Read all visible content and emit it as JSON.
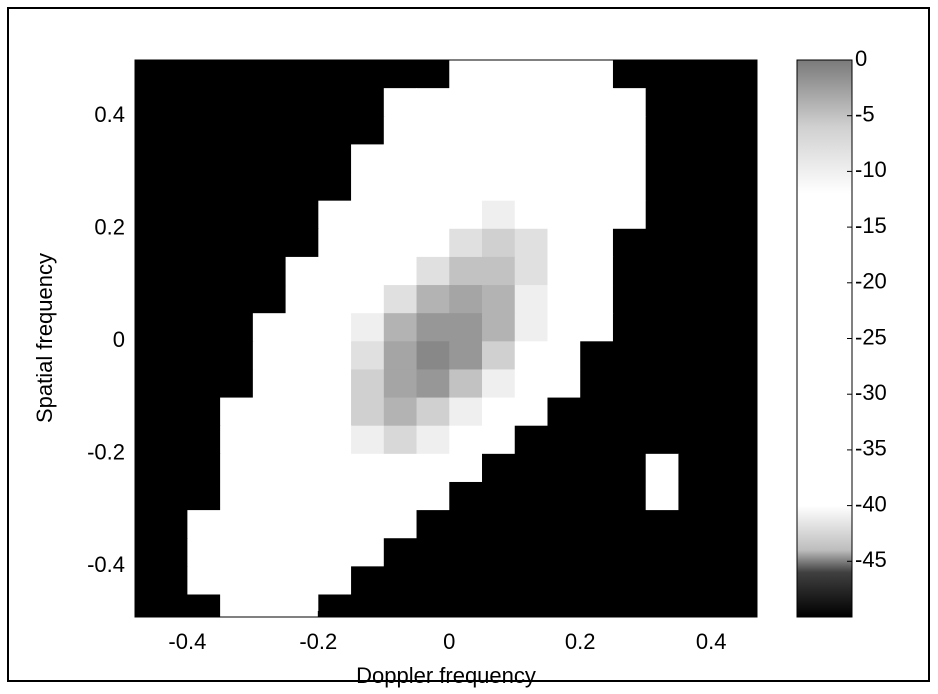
{
  "chart_data": {
    "type": "heatmap",
    "xlabel": "Doppler frequency",
    "ylabel": "Spatial frequency",
    "xlim": [
      -0.48,
      0.47
    ],
    "ylim": [
      -0.49,
      0.5
    ],
    "xticks": [
      -0.4,
      -0.2,
      0,
      0.2,
      0.4
    ],
    "yticks": [
      -0.4,
      -0.2,
      0,
      0.2,
      0.4
    ],
    "x": [
      -0.475,
      -0.425,
      -0.375,
      -0.325,
      -0.275,
      -0.225,
      -0.175,
      -0.125,
      -0.075,
      -0.025,
      0.025,
      0.075,
      0.125,
      0.175,
      0.225,
      0.275,
      0.325,
      0.375,
      0.425,
      0.475
    ],
    "y": [
      0.475,
      0.425,
      0.375,
      0.325,
      0.275,
      0.225,
      0.175,
      0.125,
      0.075,
      0.025,
      -0.025,
      -0.075,
      -0.125,
      -0.175,
      -0.225,
      -0.275,
      -0.325,
      -0.375,
      -0.425,
      -0.475
    ],
    "z": [
      [
        -50,
        -50,
        -50,
        -50,
        -50,
        -50,
        -50,
        -50,
        -50,
        -50,
        -25,
        -25,
        -25,
        -25,
        -25,
        -50,
        -50,
        -50,
        -50,
        -50
      ],
      [
        -50,
        -50,
        -50,
        -50,
        -50,
        -50,
        -50,
        -50,
        -40,
        -25,
        -25,
        -25,
        -25,
        -25,
        -25,
        -25,
        -50,
        -50,
        -50,
        -50
      ],
      [
        -50,
        -50,
        -50,
        -50,
        -50,
        -50,
        -50,
        -50,
        -25,
        -25,
        -25,
        -25,
        -25,
        -25,
        -25,
        -25,
        -50,
        -50,
        -50,
        -50
      ],
      [
        -50,
        -50,
        -50,
        -50,
        -50,
        -50,
        -50,
        -25,
        -25,
        -25,
        -25,
        -25,
        -25,
        -25,
        -25,
        -25,
        -50,
        -50,
        -50,
        -50
      ],
      [
        -50,
        -50,
        -50,
        -50,
        -50,
        -50,
        -50,
        -25,
        -25,
        -25,
        -25,
        -25,
        -25,
        -25,
        -25,
        -25,
        -50,
        -50,
        -50,
        -50
      ],
      [
        -50,
        -50,
        -50,
        -50,
        -50,
        -50,
        -25,
        -25,
        -25,
        -25,
        -25,
        -10,
        -25,
        -25,
        -25,
        -40,
        -50,
        -50,
        -50,
        -50
      ],
      [
        -50,
        -50,
        -50,
        -50,
        -50,
        -50,
        -25,
        -25,
        -25,
        -25,
        -8,
        -6,
        -8,
        -25,
        -25,
        -50,
        -50,
        -50,
        -50,
        -50
      ],
      [
        -50,
        -50,
        -50,
        -50,
        -50,
        -25,
        -25,
        -25,
        -25,
        -8,
        -5,
        -5,
        -8,
        -25,
        -25,
        -50,
        -50,
        -50,
        -50,
        -50
      ],
      [
        -50,
        -50,
        -50,
        -50,
        -50,
        -25,
        -25,
        -25,
        -8,
        -4,
        -3,
        -4,
        -10,
        -25,
        -25,
        -50,
        -50,
        -50,
        -50,
        -50
      ],
      [
        -50,
        -50,
        -50,
        -50,
        -40,
        -25,
        -25,
        -10,
        -4,
        -2,
        -2,
        -4,
        -10,
        -25,
        -40,
        -50,
        -50,
        -50,
        -50,
        -50
      ],
      [
        -50,
        -50,
        -50,
        -50,
        -25,
        -25,
        -25,
        -8,
        -3,
        -1,
        -2,
        -6,
        -25,
        -25,
        -50,
        -50,
        -50,
        -50,
        -50,
        -50
      ],
      [
        -50,
        -50,
        -50,
        -50,
        -25,
        -25,
        -25,
        -6,
        -3,
        -2,
        -5,
        -10,
        -25,
        -40,
        -50,
        -50,
        -50,
        -50,
        -50,
        -50
      ],
      [
        -50,
        -50,
        -50,
        -25,
        -25,
        -25,
        -25,
        -6,
        -4,
        -6,
        -10,
        -25,
        -25,
        -50,
        -50,
        -50,
        -50,
        -50,
        -50,
        -50
      ],
      [
        -50,
        -50,
        -50,
        -25,
        -25,
        -25,
        -25,
        -10,
        -7,
        -10,
        -25,
        -25,
        -50,
        -50,
        -50,
        -50,
        -50,
        -50,
        -50,
        -50
      ],
      [
        -50,
        -50,
        -50,
        -25,
        -25,
        -25,
        -25,
        -12,
        -12,
        -25,
        -25,
        -50,
        -50,
        -50,
        -50,
        -50,
        -30,
        -50,
        -50,
        -50
      ],
      [
        -50,
        -50,
        -50,
        -25,
        -25,
        -25,
        -25,
        -25,
        -25,
        -25,
        -50,
        -50,
        -50,
        -50,
        -50,
        -50,
        -32,
        -50,
        -50,
        -50
      ],
      [
        -50,
        -50,
        -25,
        -25,
        -25,
        -25,
        -25,
        -25,
        -25,
        -50,
        -50,
        -50,
        -50,
        -50,
        -50,
        -50,
        -50,
        -50,
        -50,
        -50
      ],
      [
        -50,
        -50,
        -25,
        -25,
        -25,
        -25,
        -25,
        -25,
        -50,
        -50,
        -50,
        -50,
        -50,
        -50,
        -50,
        -50,
        -50,
        -50,
        -50,
        -50
      ],
      [
        -50,
        -50,
        -25,
        -25,
        -25,
        -25,
        -25,
        -50,
        -50,
        -50,
        -50,
        -50,
        -50,
        -50,
        -50,
        -50,
        -50,
        -50,
        -50,
        -50
      ],
      [
        -50,
        -50,
        -50,
        -25,
        -25,
        -25,
        -50,
        -50,
        -50,
        -50,
        -50,
        -50,
        -50,
        -50,
        -50,
        -50,
        -50,
        -50,
        -50,
        -50
      ]
    ],
    "clim": [
      -50,
      0
    ],
    "cticks": [
      0,
      -5,
      -10,
      -15,
      -20,
      -25,
      -30,
      -35,
      -40,
      -45
    ],
    "colorscale": [
      [
        0,
        "#7a7a7a"
      ],
      [
        -6,
        "#d0d0d0"
      ],
      [
        -12,
        "#ffffff"
      ],
      [
        -40,
        "#ffffff"
      ],
      [
        -44,
        "#bdbdbd"
      ],
      [
        -46,
        "#404040"
      ],
      [
        -50,
        "#000000"
      ]
    ]
  }
}
